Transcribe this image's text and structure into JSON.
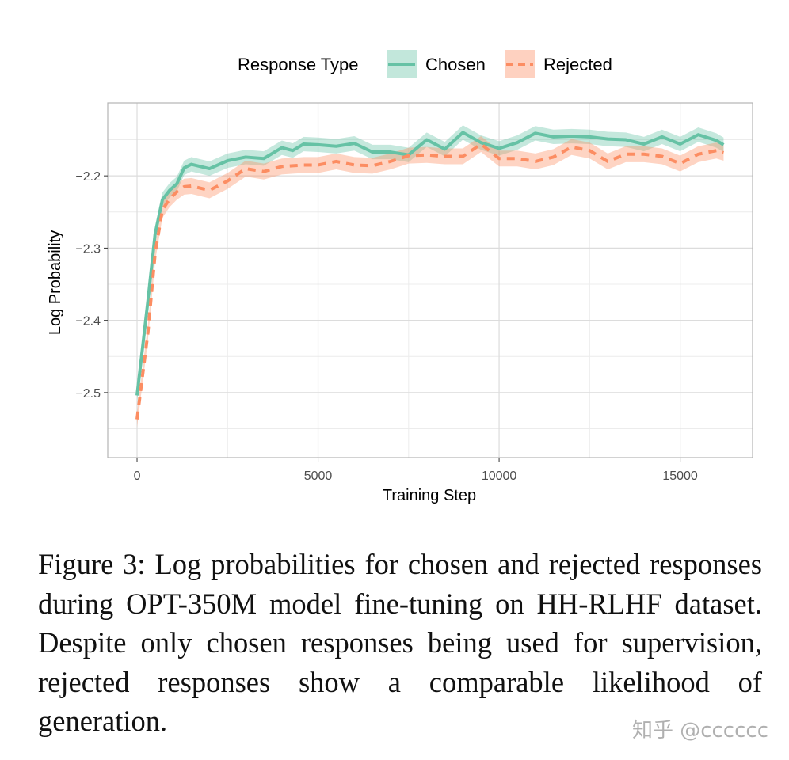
{
  "chart_data": {
    "type": "line",
    "xlabel": "Training Step",
    "ylabel": "Log Probability",
    "xlim": [
      -810,
      17000
    ],
    "ylim": [
      -2.59,
      -2.099
    ],
    "xticks": [
      0,
      5000,
      10000,
      15000
    ],
    "xtick_labels": [
      "0",
      "5000",
      "10000",
      "15000"
    ],
    "yticks": [
      -2.2,
      -2.3,
      -2.4,
      -2.5
    ],
    "ytick_labels": [
      "−2.2",
      "−2.3",
      "−2.4",
      "−2.5"
    ],
    "grid": true,
    "legend": {
      "title": "Response Type",
      "placement": "top"
    },
    "x": [
      0,
      300,
      500,
      700,
      900,
      1100,
      1300,
      1500,
      2000,
      2500,
      3000,
      3500,
      4000,
      4300,
      4600,
      5000,
      5500,
      6000,
      6500,
      7000,
      7500,
      8000,
      8500,
      9000,
      9500,
      10000,
      10500,
      11000,
      11500,
      12000,
      12500,
      13000,
      13500,
      14000,
      14500,
      15000,
      15500,
      16000,
      16200
    ],
    "series": [
      {
        "name": "Chosen",
        "color": "#66c2a5",
        "dash": "solid",
        "band": 0.01,
        "values": [
          -2.504,
          -2.373,
          -2.28,
          -2.233,
          -2.22,
          -2.211,
          -2.189,
          -2.184,
          -2.19,
          -2.179,
          -2.174,
          -2.176,
          -2.161,
          -2.165,
          -2.156,
          -2.157,
          -2.159,
          -2.155,
          -2.167,
          -2.167,
          -2.171,
          -2.15,
          -2.163,
          -2.14,
          -2.154,
          -2.162,
          -2.154,
          -2.141,
          -2.146,
          -2.145,
          -2.146,
          -2.149,
          -2.15,
          -2.156,
          -2.146,
          -2.156,
          -2.143,
          -2.151,
          -2.157
        ]
      },
      {
        "name": "Rejected",
        "color": "#fc8d62",
        "dash": "dashed",
        "band": 0.011,
        "values": [
          -2.537,
          -2.417,
          -2.307,
          -2.247,
          -2.232,
          -2.222,
          -2.215,
          -2.214,
          -2.22,
          -2.207,
          -2.19,
          -2.194,
          -2.187,
          -2.186,
          -2.185,
          -2.185,
          -2.18,
          -2.185,
          -2.186,
          -2.18,
          -2.172,
          -2.171,
          -2.173,
          -2.173,
          -2.156,
          -2.176,
          -2.176,
          -2.18,
          -2.174,
          -2.16,
          -2.165,
          -2.18,
          -2.17,
          -2.17,
          -2.173,
          -2.183,
          -2.17,
          -2.165,
          -2.168
        ]
      }
    ]
  },
  "caption": "Figure 3:  Log probabilities for chosen and rejected responses during OPT-350M model fine-tuning on HH-RLHF dataset.  Despite only chosen responses being used for supervision, rejected responses show a comparable likelihood of generation.",
  "watermark": "知乎 @cccccc"
}
